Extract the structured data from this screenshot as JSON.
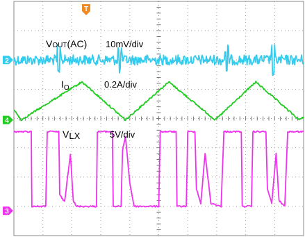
{
  "chart_data": {
    "type": "line",
    "title": "",
    "grid": true,
    "divisions": {
      "x": 10,
      "y": 8
    },
    "trigger_marker": {
      "label": "T",
      "color": "#f08a24"
    },
    "channels": [
      {
        "id": "ch2",
        "marker": "2",
        "name": "VOUT(AC)",
        "label_main": "V",
        "label_sub": "OUT",
        "label_suffix": "(AC)",
        "scale": "10mV/div",
        "color": "#33ccee",
        "offset_div": 2.0,
        "waveform": "ripple",
        "ripple_pp_div": 0.35,
        "spikes_at_div": [
          1.55,
          3.65,
          7.35,
          8.95
        ]
      },
      {
        "id": "ch4",
        "marker": "4",
        "name": "IO",
        "label_main": "I",
        "label_sub": "O",
        "scale": "0.2A/div",
        "color": "#22cc22",
        "offset_div": 4.05,
        "waveform": "triangle",
        "points": [
          [
            0.0,
            3.7
          ],
          [
            0.25,
            4.05
          ],
          [
            2.35,
            2.75
          ],
          [
            3.85,
            4.05
          ],
          [
            5.0,
            3.05
          ],
          [
            5.35,
            2.75
          ],
          [
            6.95,
            4.05
          ],
          [
            8.35,
            2.75
          ],
          [
            9.85,
            4.05
          ],
          [
            10.0,
            3.95
          ]
        ]
      },
      {
        "id": "ch3",
        "marker": "3",
        "name": "VLX",
        "label_main": "V",
        "label_sub": "LX",
        "scale": "5V/div",
        "color": "#ee33ee",
        "offset_div": 7.15,
        "waveform": "switching",
        "high_div": 4.45,
        "low_div": 7.0,
        "points": [
          [
            0.0,
            4.45
          ],
          [
            0.6,
            4.45
          ],
          [
            0.62,
            7.0
          ],
          [
            1.1,
            7.0
          ],
          [
            1.15,
            4.45
          ],
          [
            1.55,
            4.45
          ],
          [
            1.58,
            6.6
          ],
          [
            1.75,
            6.85
          ],
          [
            1.95,
            5.2
          ],
          [
            2.05,
            6.8
          ],
          [
            2.15,
            7.0
          ],
          [
            2.85,
            7.0
          ],
          [
            2.88,
            4.45
          ],
          [
            3.4,
            4.45
          ],
          [
            3.43,
            7.0
          ],
          [
            3.7,
            7.0
          ],
          [
            3.75,
            5.1
          ],
          [
            3.85,
            4.6
          ],
          [
            4.0,
            6.2
          ],
          [
            4.15,
            7.0
          ],
          [
            5.0,
            7.0
          ],
          [
            5.05,
            4.45
          ],
          [
            5.6,
            4.45
          ],
          [
            5.63,
            7.0
          ],
          [
            5.95,
            7.0
          ],
          [
            6.0,
            4.45
          ],
          [
            6.25,
            4.45
          ],
          [
            6.3,
            6.4
          ],
          [
            6.45,
            6.9
          ],
          [
            6.6,
            5.2
          ],
          [
            6.8,
            6.9
          ],
          [
            7.15,
            7.0
          ],
          [
            7.25,
            4.45
          ],
          [
            7.85,
            4.45
          ],
          [
            7.88,
            7.0
          ],
          [
            8.2,
            7.0
          ],
          [
            8.25,
            4.45
          ],
          [
            8.7,
            4.45
          ],
          [
            8.75,
            6.4
          ],
          [
            8.9,
            6.9
          ],
          [
            9.05,
            5.2
          ],
          [
            9.15,
            6.8
          ],
          [
            9.35,
            7.0
          ],
          [
            9.45,
            4.45
          ],
          [
            10.0,
            4.45
          ]
        ]
      }
    ]
  }
}
